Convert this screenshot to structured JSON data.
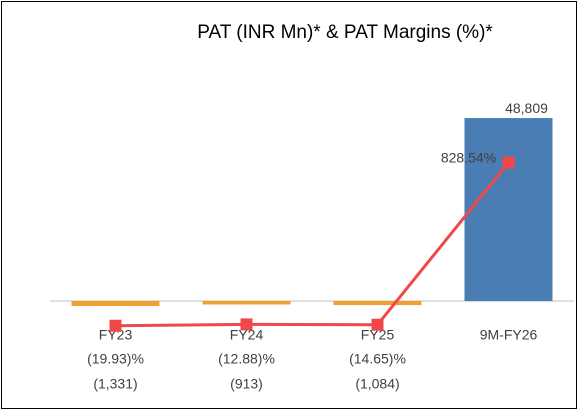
{
  "chart_data": {
    "type": "bar",
    "title": "PAT (INR Mn)* & PAT Margins (%)*",
    "categories": [
      "FY23",
      "FY24",
      "FY25",
      "9M-FY26"
    ],
    "series": [
      {
        "type": "bar",
        "color": "#4a7db3",
        "negative_color": "#f0a030",
        "values": [
          -1331,
          -913,
          -1084,
          48809
        ],
        "value_labels": [
          "(1,331)",
          "(913)",
          "(1,084)",
          "48,809"
        ]
      },
      {
        "type": "line",
        "axis": "y2",
        "color": "#f04848",
        "values": [
          -19.93,
          -12.88,
          -14.65,
          828.54
        ],
        "value_labels": [
          "(19.93)%",
          "(12.88)%",
          "(14.65)%",
          "828.54%"
        ]
      }
    ],
    "ylim": [
      -26400,
      64300
    ],
    "y2lim": [
      -406,
      1362
    ]
  }
}
